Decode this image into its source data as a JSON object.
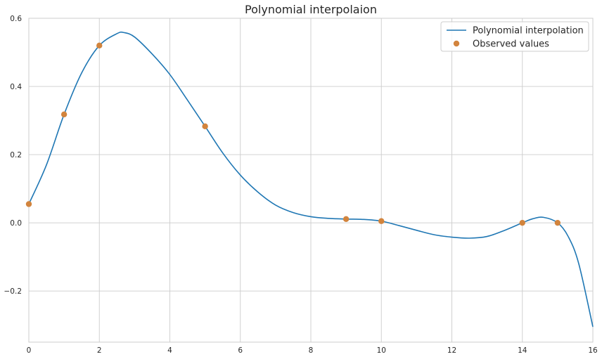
{
  "chart_data": {
    "type": "line",
    "title": "Polynomial interpolaion",
    "xlabel": "",
    "ylabel": "",
    "xlim": [
      0,
      16
    ],
    "ylim": [
      -0.35,
      0.6
    ],
    "grid": true,
    "legend_position": "top-right",
    "x_ticks": [
      0,
      2,
      4,
      6,
      8,
      10,
      12,
      14,
      16
    ],
    "x_tick_labels": [
      "0",
      "2",
      "4",
      "6",
      "8",
      "10",
      "12",
      "14",
      "16"
    ],
    "y_ticks": [
      -0.2,
      0.0,
      0.2,
      0.4,
      0.6
    ],
    "y_tick_labels": [
      "−0.2",
      "0.0",
      "0.2",
      "0.4",
      "0.6"
    ],
    "series": [
      {
        "name": "Polynomial interpolation",
        "kind": "line",
        "color": "#1f77b4",
        "x": [
          0,
          0.5,
          1,
          1.5,
          2,
          2.5,
          2.7,
          3,
          3.5,
          4,
          4.5,
          5,
          5.5,
          6,
          6.5,
          7,
          7.5,
          8,
          8.5,
          9,
          9.5,
          10,
          10.5,
          11,
          11.5,
          12,
          12.5,
          13,
          13.5,
          14,
          14.3,
          14.6,
          15,
          15.3,
          15.6,
          16
        ],
        "y": [
          0.055,
          0.17,
          0.318,
          0.44,
          0.52,
          0.555,
          0.558,
          0.545,
          0.495,
          0.435,
          0.36,
          0.283,
          0.205,
          0.14,
          0.09,
          0.052,
          0.03,
          0.018,
          0.013,
          0.011,
          0.01,
          0.005,
          -0.008,
          -0.022,
          -0.035,
          -0.042,
          -0.045,
          -0.04,
          -0.022,
          0.0,
          0.012,
          0.016,
          0.0,
          -0.04,
          -0.12,
          -0.305
        ]
      },
      {
        "name": "Observed values",
        "kind": "scatter",
        "color": "#d2843d",
        "x": [
          0,
          1,
          2,
          5,
          9,
          10,
          14,
          15
        ],
        "y": [
          0.055,
          0.318,
          0.52,
          0.283,
          0.011,
          0.005,
          0.0,
          0.0
        ]
      }
    ]
  }
}
